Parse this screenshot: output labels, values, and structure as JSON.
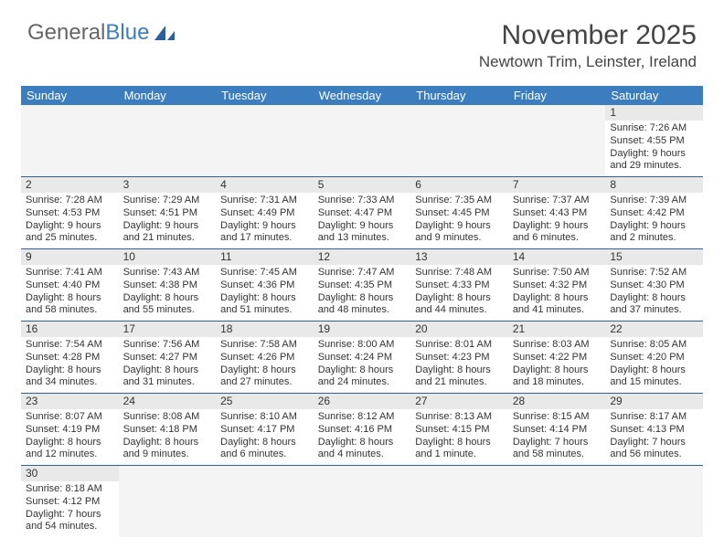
{
  "logo": {
    "text1": "General",
    "text2": "Blue",
    "text1_color": "#666666",
    "text2_color": "#3b7dbf",
    "sail_color": "#2e5f99"
  },
  "header": {
    "month_year": "November 2025",
    "location": "Newtown Trim, Leinster, Ireland",
    "title_color": "#444444",
    "title_fontsize": 30,
    "location_fontsize": 17
  },
  "style": {
    "header_bg": "#3b7dbf",
    "header_text": "#ffffff",
    "daynum_bg": "#e9e9e9",
    "cell_border": "#2e5f99",
    "body_font": "Arial",
    "cell_fontsize": 11
  },
  "days_of_week": [
    "Sunday",
    "Monday",
    "Tuesday",
    "Wednesday",
    "Thursday",
    "Friday",
    "Saturday"
  ],
  "weeks": [
    [
      null,
      null,
      null,
      null,
      null,
      null,
      {
        "n": "1",
        "sunrise": "Sunrise: 7:26 AM",
        "sunset": "Sunset: 4:55 PM",
        "d1": "Daylight: 9 hours",
        "d2": "and 29 minutes."
      }
    ],
    [
      {
        "n": "2",
        "sunrise": "Sunrise: 7:28 AM",
        "sunset": "Sunset: 4:53 PM",
        "d1": "Daylight: 9 hours",
        "d2": "and 25 minutes."
      },
      {
        "n": "3",
        "sunrise": "Sunrise: 7:29 AM",
        "sunset": "Sunset: 4:51 PM",
        "d1": "Daylight: 9 hours",
        "d2": "and 21 minutes."
      },
      {
        "n": "4",
        "sunrise": "Sunrise: 7:31 AM",
        "sunset": "Sunset: 4:49 PM",
        "d1": "Daylight: 9 hours",
        "d2": "and 17 minutes."
      },
      {
        "n": "5",
        "sunrise": "Sunrise: 7:33 AM",
        "sunset": "Sunset: 4:47 PM",
        "d1": "Daylight: 9 hours",
        "d2": "and 13 minutes."
      },
      {
        "n": "6",
        "sunrise": "Sunrise: 7:35 AM",
        "sunset": "Sunset: 4:45 PM",
        "d1": "Daylight: 9 hours",
        "d2": "and 9 minutes."
      },
      {
        "n": "7",
        "sunrise": "Sunrise: 7:37 AM",
        "sunset": "Sunset: 4:43 PM",
        "d1": "Daylight: 9 hours",
        "d2": "and 6 minutes."
      },
      {
        "n": "8",
        "sunrise": "Sunrise: 7:39 AM",
        "sunset": "Sunset: 4:42 PM",
        "d1": "Daylight: 9 hours",
        "d2": "and 2 minutes."
      }
    ],
    [
      {
        "n": "9",
        "sunrise": "Sunrise: 7:41 AM",
        "sunset": "Sunset: 4:40 PM",
        "d1": "Daylight: 8 hours",
        "d2": "and 58 minutes."
      },
      {
        "n": "10",
        "sunrise": "Sunrise: 7:43 AM",
        "sunset": "Sunset: 4:38 PM",
        "d1": "Daylight: 8 hours",
        "d2": "and 55 minutes."
      },
      {
        "n": "11",
        "sunrise": "Sunrise: 7:45 AM",
        "sunset": "Sunset: 4:36 PM",
        "d1": "Daylight: 8 hours",
        "d2": "and 51 minutes."
      },
      {
        "n": "12",
        "sunrise": "Sunrise: 7:47 AM",
        "sunset": "Sunset: 4:35 PM",
        "d1": "Daylight: 8 hours",
        "d2": "and 48 minutes."
      },
      {
        "n": "13",
        "sunrise": "Sunrise: 7:48 AM",
        "sunset": "Sunset: 4:33 PM",
        "d1": "Daylight: 8 hours",
        "d2": "and 44 minutes."
      },
      {
        "n": "14",
        "sunrise": "Sunrise: 7:50 AM",
        "sunset": "Sunset: 4:32 PM",
        "d1": "Daylight: 8 hours",
        "d2": "and 41 minutes."
      },
      {
        "n": "15",
        "sunrise": "Sunrise: 7:52 AM",
        "sunset": "Sunset: 4:30 PM",
        "d1": "Daylight: 8 hours",
        "d2": "and 37 minutes."
      }
    ],
    [
      {
        "n": "16",
        "sunrise": "Sunrise: 7:54 AM",
        "sunset": "Sunset: 4:28 PM",
        "d1": "Daylight: 8 hours",
        "d2": "and 34 minutes."
      },
      {
        "n": "17",
        "sunrise": "Sunrise: 7:56 AM",
        "sunset": "Sunset: 4:27 PM",
        "d1": "Daylight: 8 hours",
        "d2": "and 31 minutes."
      },
      {
        "n": "18",
        "sunrise": "Sunrise: 7:58 AM",
        "sunset": "Sunset: 4:26 PM",
        "d1": "Daylight: 8 hours",
        "d2": "and 27 minutes."
      },
      {
        "n": "19",
        "sunrise": "Sunrise: 8:00 AM",
        "sunset": "Sunset: 4:24 PM",
        "d1": "Daylight: 8 hours",
        "d2": "and 24 minutes."
      },
      {
        "n": "20",
        "sunrise": "Sunrise: 8:01 AM",
        "sunset": "Sunset: 4:23 PM",
        "d1": "Daylight: 8 hours",
        "d2": "and 21 minutes."
      },
      {
        "n": "21",
        "sunrise": "Sunrise: 8:03 AM",
        "sunset": "Sunset: 4:22 PM",
        "d1": "Daylight: 8 hours",
        "d2": "and 18 minutes."
      },
      {
        "n": "22",
        "sunrise": "Sunrise: 8:05 AM",
        "sunset": "Sunset: 4:20 PM",
        "d1": "Daylight: 8 hours",
        "d2": "and 15 minutes."
      }
    ],
    [
      {
        "n": "23",
        "sunrise": "Sunrise: 8:07 AM",
        "sunset": "Sunset: 4:19 PM",
        "d1": "Daylight: 8 hours",
        "d2": "and 12 minutes."
      },
      {
        "n": "24",
        "sunrise": "Sunrise: 8:08 AM",
        "sunset": "Sunset: 4:18 PM",
        "d1": "Daylight: 8 hours",
        "d2": "and 9 minutes."
      },
      {
        "n": "25",
        "sunrise": "Sunrise: 8:10 AM",
        "sunset": "Sunset: 4:17 PM",
        "d1": "Daylight: 8 hours",
        "d2": "and 6 minutes."
      },
      {
        "n": "26",
        "sunrise": "Sunrise: 8:12 AM",
        "sunset": "Sunset: 4:16 PM",
        "d1": "Daylight: 8 hours",
        "d2": "and 4 minutes."
      },
      {
        "n": "27",
        "sunrise": "Sunrise: 8:13 AM",
        "sunset": "Sunset: 4:15 PM",
        "d1": "Daylight: 8 hours",
        "d2": "and 1 minute."
      },
      {
        "n": "28",
        "sunrise": "Sunrise: 8:15 AM",
        "sunset": "Sunset: 4:14 PM",
        "d1": "Daylight: 7 hours",
        "d2": "and 58 minutes."
      },
      {
        "n": "29",
        "sunrise": "Sunrise: 8:17 AM",
        "sunset": "Sunset: 4:13 PM",
        "d1": "Daylight: 7 hours",
        "d2": "and 56 minutes."
      }
    ],
    [
      {
        "n": "30",
        "sunrise": "Sunrise: 8:18 AM",
        "sunset": "Sunset: 4:12 PM",
        "d1": "Daylight: 7 hours",
        "d2": "and 54 minutes."
      },
      null,
      null,
      null,
      null,
      null,
      null
    ]
  ]
}
